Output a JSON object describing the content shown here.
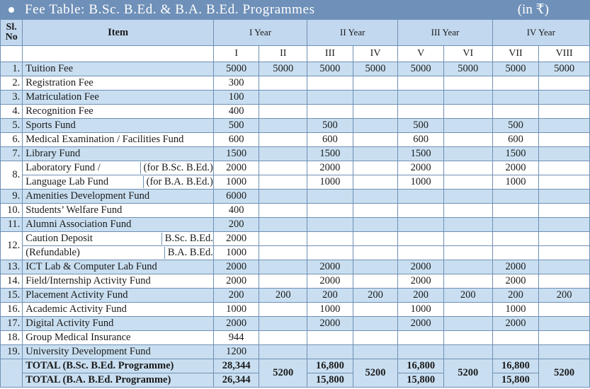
{
  "banner": {
    "title": "Fee Table: B.Sc. B.Ed. & B.A. B.Ed. Programmes",
    "unit": "(in ₹)"
  },
  "header": {
    "sl": "Sl.",
    "no": "No",
    "item": "Item",
    "years": [
      "I Year",
      "II Year",
      "III Year",
      "IV Year"
    ],
    "semesters": [
      "I",
      "II",
      "III",
      "IV",
      "V",
      "VI",
      "VII",
      "VIII"
    ]
  },
  "rows": [
    {
      "sl": "1.",
      "item": "Tuition Fee",
      "v": [
        "5000",
        "5000",
        "5000",
        "5000",
        "5000",
        "5000",
        "5000",
        "5000"
      ]
    },
    {
      "sl": "2.",
      "item": "Registration Fee",
      "v": [
        "300",
        "",
        "",
        "",
        "",
        "",
        "",
        ""
      ]
    },
    {
      "sl": "3.",
      "item": "Matriculation Fee",
      "v": [
        "100",
        "",
        "",
        "",
        "",
        "",
        "",
        ""
      ]
    },
    {
      "sl": "4.",
      "item": "Recognition Fee",
      "v": [
        "400",
        "",
        "",
        "",
        "",
        "",
        "",
        ""
      ]
    },
    {
      "sl": "5.",
      "item": "Sports Fund",
      "v": [
        "500",
        "",
        "500",
        "",
        "500",
        "",
        "500",
        ""
      ]
    },
    {
      "sl": "6.",
      "item": "Medical Examination / Facilities Fund",
      "v": [
        "600",
        "",
        "600",
        "",
        "600",
        "",
        "600",
        ""
      ]
    },
    {
      "sl": "7.",
      "item": "Library Fund",
      "v": [
        "1500",
        "",
        "1500",
        "",
        "1500",
        "",
        "1500",
        ""
      ]
    },
    {
      "sl": "8.",
      "item_a": "Laboratory Fund /",
      "item_a2": "(for B.Sc. B.Ed.)",
      "item_b": "Language Lab Fund",
      "item_b2": "(for B.A. B.Ed.)",
      "v_a": [
        "2000",
        "",
        "2000",
        "",
        "2000",
        "",
        "2000",
        ""
      ],
      "v_b": [
        "1000",
        "",
        "1000",
        "",
        "1000",
        "",
        "1000",
        ""
      ]
    },
    {
      "sl": "9.",
      "item": "Amenities Development Fund",
      "v": [
        "6000",
        "",
        "",
        "",
        "",
        "",
        "",
        ""
      ]
    },
    {
      "sl": "10.",
      "item": "Students’ Welfare Fund",
      "v": [
        "400",
        "",
        "",
        "",
        "",
        "",
        "",
        ""
      ]
    },
    {
      "sl": "11.",
      "item": "Alumni Association Fund",
      "v": [
        "200",
        "",
        "",
        "",
        "",
        "",
        "",
        ""
      ]
    },
    {
      "sl": "12.",
      "item_a": "Caution Deposit",
      "item_a2": "B.Sc. B.Ed.",
      "item_b": "(Refundable)",
      "item_b2": "B.A. B.Ed.",
      "v_a": [
        "2000",
        "",
        "",
        "",
        "",
        "",
        "",
        ""
      ],
      "v_b": [
        "1000",
        "",
        "",
        "",
        "",
        "",
        "",
        ""
      ]
    },
    {
      "sl": "13.",
      "item": "ICT Lab & Computer Lab Fund",
      "v": [
        "2000",
        "",
        "2000",
        "",
        "2000",
        "",
        "2000",
        ""
      ]
    },
    {
      "sl": "14.",
      "item": "Field/Internship Activity Fund",
      "v": [
        "2000",
        "",
        "2000",
        "",
        "2000",
        "",
        "2000",
        ""
      ]
    },
    {
      "sl": "15.",
      "item": "Placement Activity Fund",
      "v": [
        "200",
        "200",
        "200",
        "200",
        "200",
        "200",
        "200",
        "200"
      ]
    },
    {
      "sl": "16.",
      "item": "Academic Activity Fund",
      "v": [
        "1000",
        "",
        "1000",
        "",
        "1000",
        "",
        "1000",
        ""
      ]
    },
    {
      "sl": "17.",
      "item": "Digital Activity Fund",
      "v": [
        "2000",
        "",
        "2000",
        "",
        "2000",
        "",
        "2000",
        ""
      ]
    },
    {
      "sl": "18.",
      "item": "Group Medical Insurance",
      "v": [
        "944",
        "",
        "",
        "",
        "",
        "",
        "",
        ""
      ]
    },
    {
      "sl": "19.",
      "item": "University Development Fund",
      "v": [
        "1200",
        "",
        "",
        "",
        "",
        "",
        "",
        ""
      ]
    }
  ],
  "totals": {
    "bsc_label": "TOTAL (B.Sc. B.Ed. Programme)",
    "ba_label": "TOTAL (B.A. B.Ed. Programme)",
    "bsc": [
      "28,344",
      "16,800",
      "16,800",
      "16,800"
    ],
    "ba": [
      "26,344",
      "15,800",
      "15,800",
      "15,800"
    ],
    "even": "5200"
  }
}
